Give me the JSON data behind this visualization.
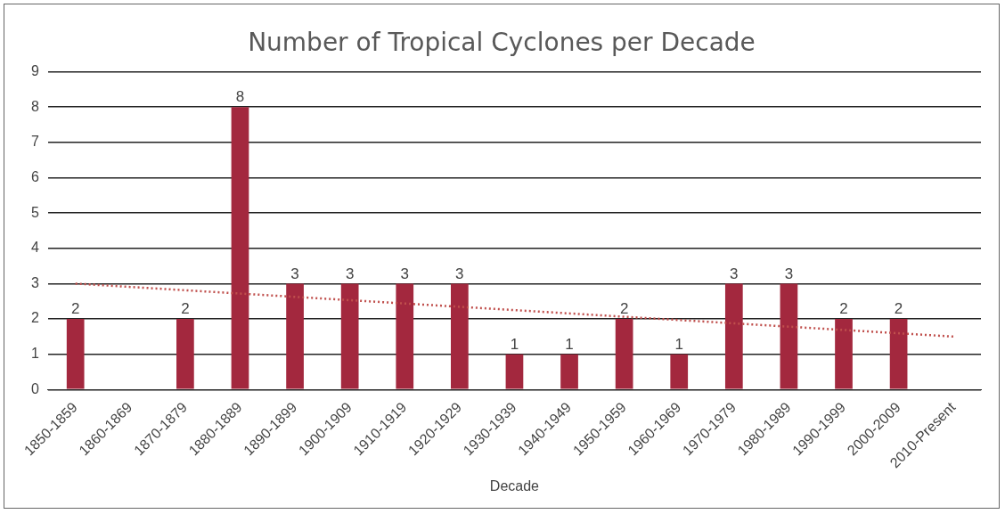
{
  "chart_data": {
    "type": "bar",
    "title": "Number of Tropical Cyclones per Decade",
    "xlabel": "Decade",
    "categories": [
      "1850-1859",
      "1860-1869",
      "1870-1879",
      "1880-1889",
      "1890-1899",
      "1900-1909",
      "1910-1919",
      "1920-1929",
      "1930-1939",
      "1940-1949",
      "1950-1959",
      "1960-1969",
      "1970-1979",
      "1980-1989",
      "1990-1999",
      "2000-2009",
      "2010-Present"
    ],
    "series": [
      {
        "color": "#a3283e",
        "values": [
          2,
          null,
          2,
          8,
          3,
          3,
          3,
          3,
          1,
          1,
          2,
          1,
          3,
          3,
          2,
          2,
          null
        ],
        "value_labels": [
          "2",
          null,
          "2",
          "8",
          "3",
          "3",
          "3",
          "3",
          "1",
          "1",
          "2",
          "1",
          "3",
          "3",
          "2",
          "2",
          null
        ]
      },
      {
        "type": "line",
        "color": "#c0504d",
        "line_style": "dotted",
        "marker": "none",
        "x": [
          "1850-1859",
          "2010-Present"
        ],
        "values": [
          3.0,
          1.5
        ]
      }
    ],
    "ylim": [
      0,
      9
    ],
    "yticks": [
      0,
      1,
      2,
      3,
      4,
      5,
      6,
      7,
      8,
      9
    ],
    "grid": "y",
    "legend": false
  }
}
